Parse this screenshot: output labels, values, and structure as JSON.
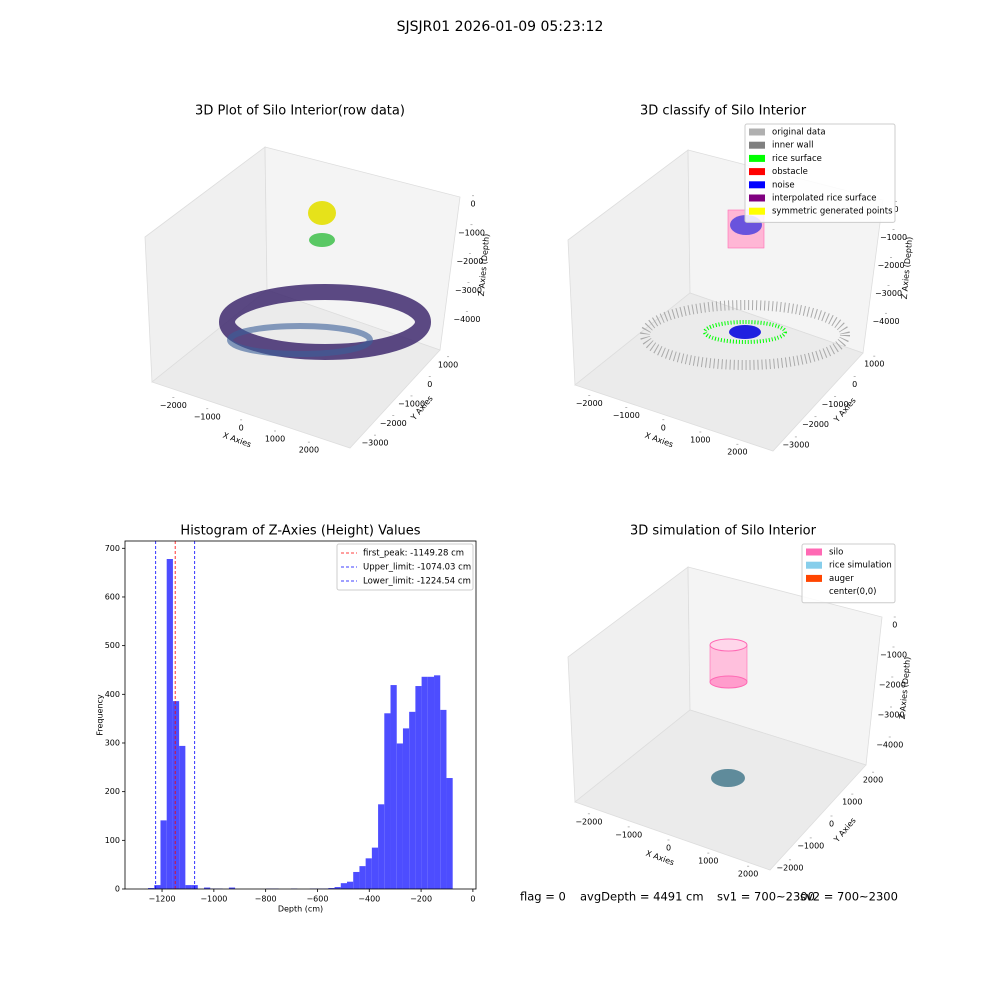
{
  "title": "SJSJR01 2026-01-09 05:23:12",
  "chart_data": [
    {
      "type": "scatter3d",
      "title": "3D Plot of Silo Interior(row data)",
      "xlabel": "X Axies",
      "ylabel": "Y Axies",
      "zlabel": "Z Axies (Depth)",
      "xlim": [
        -2600,
        2800
      ],
      "ylim": [
        -3300,
        1600
      ],
      "zlim": [
        -4600,
        200
      ],
      "xticks": [
        {
          "value": -2000,
          "label": "−2000"
        },
        {
          "value": -1000,
          "label": "−1000"
        },
        0,
        1000,
        2000
      ],
      "yticks": [
        1000,
        0,
        {
          "value": -1000,
          "label": "−1000"
        },
        {
          "value": -2000,
          "label": "−2000"
        },
        {
          "value": -3000,
          "label": "−3000"
        }
      ],
      "zticks": [
        0,
        {
          "value": -1000,
          "label": "−1000"
        },
        {
          "value": -2000,
          "label": "−2000"
        },
        {
          "value": -3000,
          "label": "−3000"
        },
        {
          "value": -4000,
          "label": "−4000"
        }
      ]
    },
    {
      "type": "scatter3d",
      "title": "3D classify of Silo Interior",
      "xlabel": "X Axies",
      "ylabel": "Y Axies",
      "zlabel": "Z Axies (Depth)",
      "xlim": [
        -2600,
        2800
      ],
      "ylim": [
        -3300,
        1600
      ],
      "zlim": [
        -4600,
        200
      ],
      "xticks": [
        {
          "value": -2000,
          "label": "−2000"
        },
        {
          "value": -1000,
          "label": "−1000"
        },
        0,
        1000,
        2000
      ],
      "yticks": [
        1000,
        0,
        {
          "value": -1000,
          "label": "−1000"
        },
        {
          "value": -2000,
          "label": "−2000"
        },
        {
          "value": -3000,
          "label": "−3000"
        }
      ],
      "zticks": [
        0,
        {
          "value": -1000,
          "label": "−1000"
        },
        {
          "value": -2000,
          "label": "−2000"
        },
        {
          "value": -3000,
          "label": "−3000"
        },
        {
          "value": -4000,
          "label": "−4000"
        }
      ],
      "legend": [
        {
          "name": "original data",
          "color": "#b0b0b0"
        },
        {
          "name": "inner wall",
          "color": "#808080"
        },
        {
          "name": "rice surface",
          "color": "#00ff00"
        },
        {
          "name": "obstacle",
          "color": "#ff0000"
        },
        {
          "name": "noise",
          "color": "#0000ff"
        },
        {
          "name": "interpolated rice surface",
          "color": "#800080"
        },
        {
          "name": "symmetric generated points",
          "color": "#ffff00"
        }
      ]
    },
    {
      "type": "histogram",
      "title": "Histogram of Z-Axies (Height) Values",
      "xlabel": "Depth (cm)",
      "ylabel": "Frequency",
      "color": "#4d4dff",
      "bins": [
        -1254,
        -1230,
        -1206,
        -1182,
        -1158,
        -1134,
        -1110,
        -1086,
        -1062,
        -1038,
        -1014,
        -990,
        -966,
        -942,
        -918,
        -894,
        -870,
        -846,
        -822,
        -798,
        -774,
        -750,
        -726,
        -702,
        -678,
        -654,
        -630,
        -606,
        -582,
        -558,
        -534,
        -510,
        -486,
        -462,
        -438,
        -414,
        -390,
        -366,
        -342,
        -318,
        -294,
        -270,
        -246,
        -222,
        -198,
        -174,
        -150,
        -126,
        -102,
        -78,
        -54
      ],
      "values": [
        2,
        8,
        141,
        678,
        386,
        294,
        8,
        8,
        0,
        3,
        1,
        1,
        0,
        3,
        0,
        0,
        0,
        0,
        0,
        1,
        1,
        0,
        0,
        1,
        0,
        0,
        1,
        1,
        1,
        2,
        4,
        12,
        15,
        35,
        47,
        63,
        85,
        174,
        361,
        419,
        299,
        330,
        364,
        417,
        436,
        436,
        439,
        368,
        228,
        0
      ],
      "xlim": [
        -1343,
        12
      ],
      "ylim": [
        0,
        715
      ],
      "xticks": [
        {
          "value": -1200,
          "label": "−1200"
        },
        {
          "value": -1000,
          "label": "−1000"
        },
        {
          "value": -800,
          "label": "−800"
        },
        {
          "value": -600,
          "label": "−600"
        },
        {
          "value": -400,
          "label": "−400"
        },
        {
          "value": -200,
          "label": "−200"
        },
        0
      ],
      "yticks": [
        0,
        100,
        200,
        300,
        400,
        500,
        600,
        700
      ],
      "lines": [
        {
          "name": "first_peak: -1149.28 cm",
          "value": -1149.28,
          "color": "#ff0000"
        },
        {
          "name": "Upper_limit: -1074.03 cm",
          "value": -1074.03,
          "color": "#0000ff"
        },
        {
          "name": "Lower_limit: -1224.54 cm",
          "value": -1224.54,
          "color": "#0000ff"
        }
      ],
      "legend_loc": "upper right"
    },
    {
      "type": "scatter3d",
      "title": "3D simulation of Silo Interior",
      "xlabel": "X Axies",
      "ylabel": "Y Axies",
      "zlabel": "Z Axies (Depth)",
      "xlim": [
        -2600,
        2600
      ],
      "ylim": [
        -2600,
        2600
      ],
      "zlim": [
        -4600,
        200
      ],
      "xticks": [
        {
          "value": -2000,
          "label": "−2000"
        },
        {
          "value": -1000,
          "label": "−1000"
        },
        0,
        1000,
        2000
      ],
      "yticks": [
        2000,
        1000,
        0,
        {
          "value": -1000,
          "label": "−1000"
        },
        {
          "value": -2000,
          "label": "−2000"
        }
      ],
      "zticks": [
        0,
        {
          "value": -1000,
          "label": "−1000"
        },
        {
          "value": -2000,
          "label": "−2000"
        },
        {
          "value": -3000,
          "label": "−3000"
        },
        {
          "value": -4000,
          "label": "−4000"
        }
      ],
      "legend": [
        {
          "name": "silo",
          "color": "#ff69b4"
        },
        {
          "name": "rice simulation",
          "color": "#87ceeb"
        },
        {
          "name": "auger",
          "color": "#ff4500"
        },
        {
          "name": "center(0,0)",
          "color": "#ffffff"
        }
      ]
    }
  ],
  "footer": {
    "flag": "flag = 0",
    "avg": "avgDepth = 4491 cm",
    "sv1": "sv1 = 700~2300",
    "sv2": "sv2 = 700~2300"
  }
}
